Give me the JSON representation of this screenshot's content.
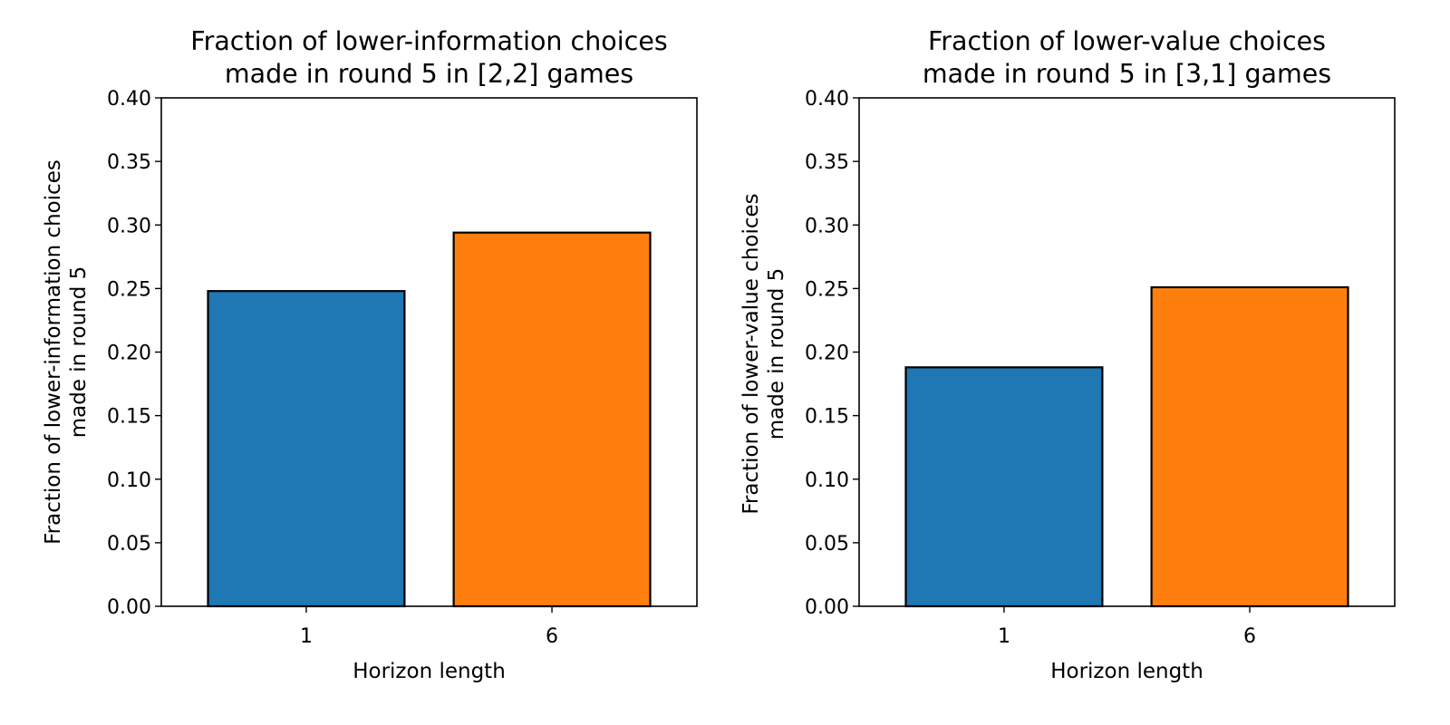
{
  "chart_data": [
    {
      "type": "bar",
      "title": "Fraction of lower-information choices\nmade in round 5 in [2,2] games",
      "xlabel": "Horizon length",
      "ylabel": "Fraction of lower-information choices\nmade in round 5",
      "categories": [
        "1",
        "6"
      ],
      "values": [
        0.248,
        0.294
      ],
      "colors": [
        "#1f77b4",
        "#ff7f0e"
      ],
      "ylim": [
        0,
        0.4
      ],
      "yticks": [
        "0.00",
        "0.05",
        "0.10",
        "0.15",
        "0.20",
        "0.25",
        "0.30",
        "0.35",
        "0.40"
      ],
      "grid": false,
      "legend": "none"
    },
    {
      "type": "bar",
      "title": "Fraction of lower-value choices\nmade in round 5 in [3,1] games",
      "xlabel": "Horizon length",
      "ylabel": "Fraction of lower-value choices\nmade in round 5",
      "categories": [
        "1",
        "6"
      ],
      "values": [
        0.188,
        0.251
      ],
      "colors": [
        "#1f77b4",
        "#ff7f0e"
      ],
      "ylim": [
        0,
        0.4
      ],
      "yticks": [
        "0.00",
        "0.05",
        "0.10",
        "0.15",
        "0.20",
        "0.25",
        "0.30",
        "0.35",
        "0.40"
      ],
      "grid": false,
      "legend": "none"
    }
  ]
}
